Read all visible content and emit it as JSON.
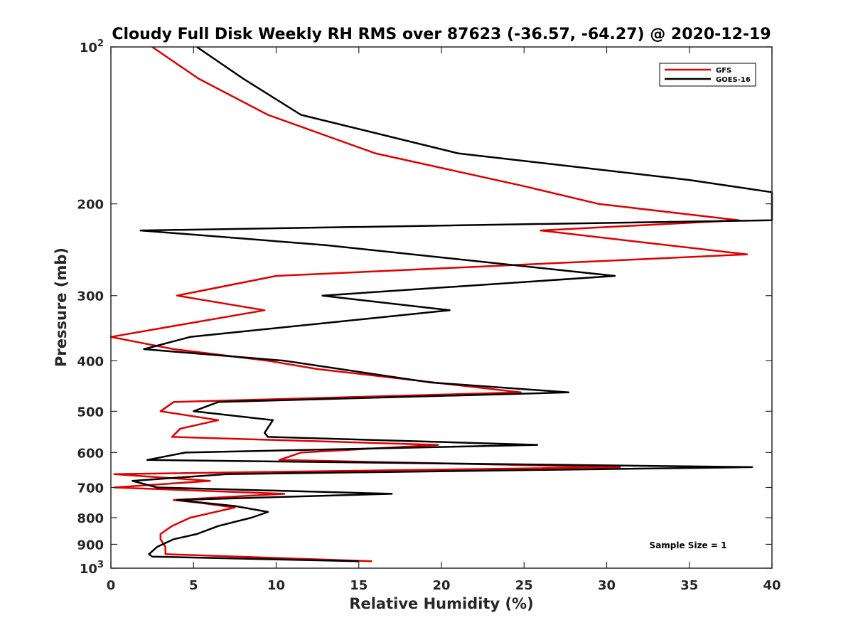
{
  "chart_data": {
    "type": "line",
    "title": "Cloudy Full Disk Weekly RH RMS over 87623 (-36.57, -64.27) @ 2020-12-19",
    "xlabel": "Relative Humidity (%)",
    "ylabel": "Pressure (mb)",
    "xlim": [
      0,
      40
    ],
    "ylim": [
      100,
      1000
    ],
    "yscale": "log",
    "y_reversed": true,
    "grid": false,
    "legend_position": "top-right",
    "x_ticks": [
      "0",
      "5",
      "10",
      "15",
      "20",
      "25",
      "30",
      "35",
      "40"
    ],
    "y_ticks": [
      {
        "value": 100,
        "base": "10",
        "exp": "2"
      },
      {
        "value": 200,
        "label": "200"
      },
      {
        "value": 300,
        "label": "300"
      },
      {
        "value": 400,
        "label": "400"
      },
      {
        "value": 500,
        "label": "500"
      },
      {
        "value": 600,
        "label": "600"
      },
      {
        "value": 700,
        "label": "700"
      },
      {
        "value": 800,
        "label": "800"
      },
      {
        "value": 900,
        "label": "900"
      },
      {
        "value": 1000,
        "base": "10",
        "exp": "3"
      }
    ],
    "annotation": "Sample Size = 1",
    "series": [
      {
        "name": "GFS",
        "color": "#e00000",
        "points": [
          [
            2.5,
            100
          ],
          [
            5.3,
            115
          ],
          [
            9.5,
            135
          ],
          [
            16.0,
            160
          ],
          [
            25.0,
            185
          ],
          [
            29.5,
            200
          ],
          [
            38.0,
            215
          ],
          [
            26.0,
            225
          ],
          [
            38.5,
            250
          ],
          [
            10.0,
            275
          ],
          [
            4.0,
            300
          ],
          [
            9.3,
            320
          ],
          [
            4.5,
            340
          ],
          [
            0.0,
            360
          ],
          [
            3.8,
            380
          ],
          [
            9.5,
            400
          ],
          [
            12.5,
            415
          ],
          [
            19.5,
            440
          ],
          [
            24.8,
            460
          ],
          [
            3.8,
            480
          ],
          [
            3.0,
            500
          ],
          [
            6.5,
            520
          ],
          [
            4.2,
            540
          ],
          [
            3.7,
            560
          ],
          [
            19.8,
            580
          ],
          [
            11.5,
            600
          ],
          [
            10.2,
            620
          ],
          [
            30.8,
            640
          ],
          [
            0.2,
            660
          ],
          [
            6.0,
            680
          ],
          [
            0.2,
            700
          ],
          [
            10.5,
            720
          ],
          [
            3.8,
            740
          ],
          [
            5.5,
            750
          ],
          [
            7.5,
            765
          ],
          [
            4.8,
            800
          ],
          [
            3.7,
            830
          ],
          [
            3.0,
            860
          ],
          [
            3.0,
            880
          ],
          [
            3.3,
            910
          ],
          [
            3.3,
            940
          ],
          [
            15.8,
            970
          ]
        ]
      },
      {
        "name": "GOES-16",
        "color": "#000000",
        "points": [
          [
            5.2,
            100
          ],
          [
            8.0,
            115
          ],
          [
            11.5,
            135
          ],
          [
            21.0,
            160
          ],
          [
            35.0,
            180
          ],
          [
            40.0,
            190
          ],
          [
            40.0,
            215
          ],
          [
            1.8,
            225
          ],
          [
            13.0,
            240
          ],
          [
            30.5,
            275
          ],
          [
            12.8,
            300
          ],
          [
            20.5,
            320
          ],
          [
            4.8,
            360
          ],
          [
            2.0,
            380
          ],
          [
            10.5,
            400
          ],
          [
            19.3,
            440
          ],
          [
            27.7,
            460
          ],
          [
            6.5,
            480
          ],
          [
            5.0,
            500
          ],
          [
            9.8,
            520
          ],
          [
            9.3,
            550
          ],
          [
            9.5,
            560
          ],
          [
            25.8,
            580
          ],
          [
            4.5,
            600
          ],
          [
            2.2,
            620
          ],
          [
            38.8,
            640
          ],
          [
            7.0,
            660
          ],
          [
            1.3,
            680
          ],
          [
            2.8,
            700
          ],
          [
            17.0,
            720
          ],
          [
            4.0,
            740
          ],
          [
            7.5,
            760
          ],
          [
            9.5,
            780
          ],
          [
            8.5,
            800
          ],
          [
            6.5,
            830
          ],
          [
            5.2,
            860
          ],
          [
            3.8,
            880
          ],
          [
            2.8,
            910
          ],
          [
            2.3,
            940
          ],
          [
            2.5,
            950
          ],
          [
            15.0,
            970
          ]
        ]
      }
    ]
  }
}
